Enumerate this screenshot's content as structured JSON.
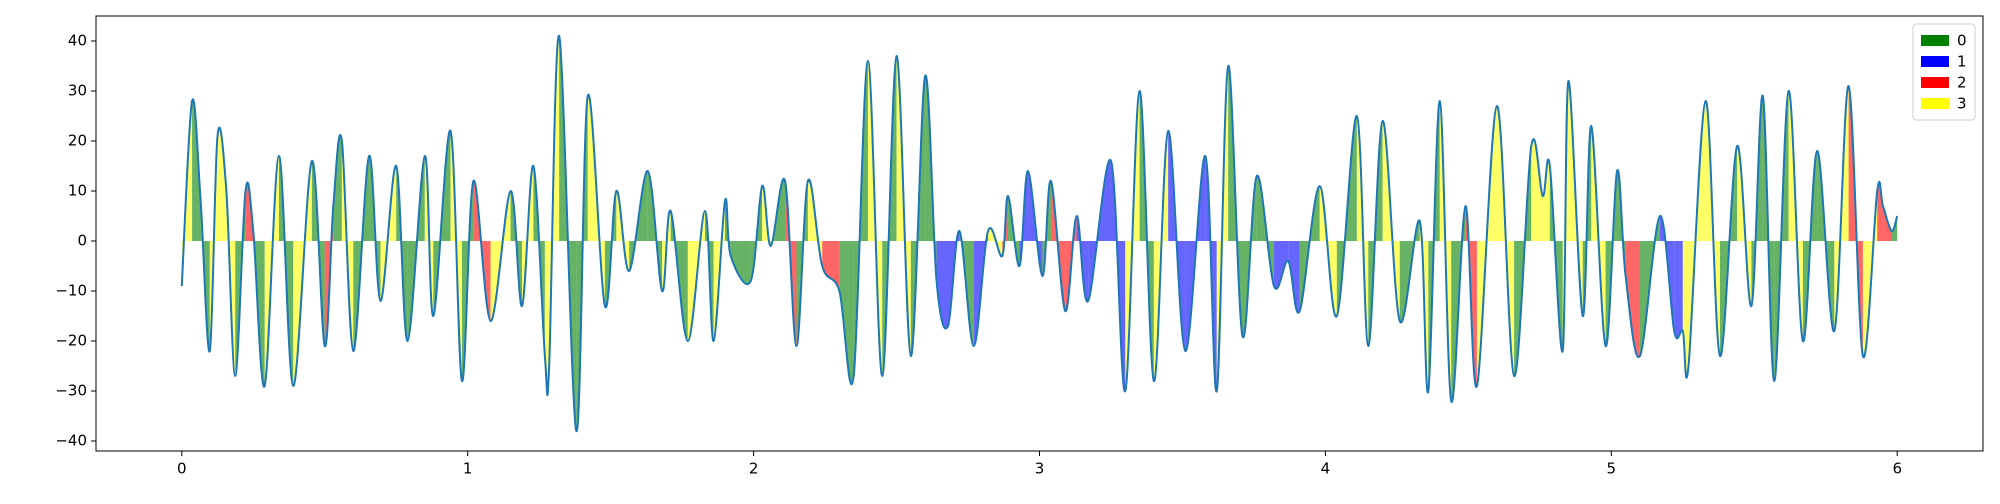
{
  "chart_data": {
    "type": "class-fill-line",
    "x": [
      0,
      0.036,
      0.066,
      0.098,
      0.125,
      0.156,
      0.187,
      0.223,
      0.25,
      0.29,
      0.34,
      0.39,
      0.455,
      0.5,
      0.53,
      0.56,
      0.6,
      0.655,
      0.695,
      0.75,
      0.79,
      0.85,
      0.88,
      0.94,
      0.98,
      1.02,
      1.08,
      1.15,
      1.19,
      1.23,
      1.27,
      1.285,
      1.32,
      1.38,
      1.42,
      1.48,
      1.52,
      1.565,
      1.63,
      1.68,
      1.71,
      1.77,
      1.83,
      1.86,
      1.9,
      1.92,
      1.99,
      2.03,
      2.06,
      2.11,
      2.15,
      2.19,
      2.24,
      2.3,
      2.35,
      2.4,
      2.45,
      2.5,
      2.55,
      2.6,
      2.64,
      2.68,
      2.72,
      2.77,
      2.82,
      2.87,
      2.89,
      2.93,
      2.96,
      3.01,
      3.04,
      3.09,
      3.13,
      3.17,
      3.25,
      3.3,
      3.35,
      3.4,
      3.45,
      3.51,
      3.58,
      3.62,
      3.66,
      3.71,
      3.76,
      3.82,
      3.87,
      3.91,
      3.98,
      4.04,
      4.11,
      4.15,
      4.2,
      4.26,
      4.33,
      4.36,
      4.4,
      4.44,
      4.49,
      4.53,
      4.6,
      4.66,
      4.72,
      4.76,
      4.785,
      4.83,
      4.85,
      4.9,
      4.93,
      4.98,
      5.02,
      5.05,
      5.1,
      5.17,
      5.22,
      5.25,
      5.27,
      5.33,
      5.38,
      5.44,
      5.49,
      5.53,
      5.57,
      5.62,
      5.67,
      5.72,
      5.78,
      5.83,
      5.88,
      5.93,
      5.95,
      5.98,
      6.0
    ],
    "values": [
      -9,
      28,
      8,
      -22,
      21,
      10,
      -27,
      10,
      2,
      -29,
      17,
      -29,
      16,
      -21,
      7,
      20,
      -22,
      17,
      -12,
      15,
      -20,
      17,
      -15,
      22,
      -28,
      12,
      -16,
      10,
      -13,
      15,
      -23,
      -25,
      41,
      -38,
      29,
      -13,
      10,
      -6,
      14,
      -10,
      6,
      -20,
      6,
      -20,
      8,
      -3,
      -8,
      11,
      -1,
      12,
      -21,
      12,
      -5,
      -10,
      -27,
      36,
      -27,
      37,
      -23,
      33,
      -8,
      -17,
      2,
      -21,
      2,
      -3,
      9,
      -5,
      14,
      -7,
      12,
      -14,
      5,
      -12,
      16,
      -30,
      30,
      -28,
      22,
      -22,
      17,
      -30,
      35,
      -19,
      13,
      -9,
      -4,
      -14,
      11,
      -15,
      25,
      -21,
      24,
      -16,
      4,
      -30,
      28,
      -32,
      7,
      -29,
      27,
      -27,
      19,
      9,
      15,
      -22,
      32,
      -15,
      23,
      -21,
      14,
      -7,
      -23,
      5,
      -18,
      -18,
      -25,
      28,
      -23,
      19,
      -13,
      29,
      -28,
      30,
      -20,
      18,
      -18,
      31,
      -23,
      10,
      7,
      2,
      5
    ],
    "labels": [
      3,
      0,
      0,
      3,
      3,
      3,
      0,
      2,
      0,
      3,
      0,
      3,
      0,
      2,
      0,
      3,
      0,
      0,
      3,
      0,
      0,
      3,
      0,
      3,
      0,
      2,
      3,
      0,
      3,
      0,
      3,
      3,
      0,
      0,
      3,
      0,
      3,
      0,
      0,
      3,
      0,
      3,
      0,
      3,
      0,
      0,
      0,
      3,
      0,
      2,
      0,
      3,
      2,
      0,
      0,
      3,
      0,
      3,
      0,
      0,
      1,
      1,
      0,
      1,
      3,
      2,
      0,
      1,
      1,
      0,
      2,
      2,
      1,
      1,
      1,
      3,
      0,
      3,
      1,
      1,
      1,
      3,
      0,
      0,
      0,
      1,
      1,
      0,
      3,
      0,
      3,
      0,
      3,
      0,
      3,
      0,
      3,
      0,
      2,
      3,
      3,
      0,
      3,
      3,
      0,
      3,
      3,
      0,
      3,
      0,
      0,
      2,
      0,
      1,
      1,
      3,
      3,
      3,
      0,
      3,
      0,
      0,
      0,
      3,
      0,
      0,
      3,
      2,
      3,
      2,
      2,
      0,
      0
    ],
    "classes": [
      {
        "name": "0",
        "color": "#008000"
      },
      {
        "name": "1",
        "color": "#0000ff"
      },
      {
        "name": "2",
        "color": "#ff0000"
      },
      {
        "name": "3",
        "color": "#ffff00"
      }
    ],
    "line_color": "#1f77b4",
    "fill_alpha": 0.6,
    "legend": "upper right",
    "xlim": [
      -0.3,
      6.3
    ],
    "ylim": [
      -42,
      45
    ],
    "xticks": [
      0,
      1,
      2,
      3,
      4,
      5,
      6
    ],
    "yticks": [
      {
        "value": -40,
        "label": "−40"
      },
      {
        "value": -30,
        "label": "−30"
      },
      {
        "value": -20,
        "label": "−20"
      },
      {
        "value": -10,
        "label": "−10"
      },
      0,
      10,
      20,
      30,
      40
    ]
  }
}
